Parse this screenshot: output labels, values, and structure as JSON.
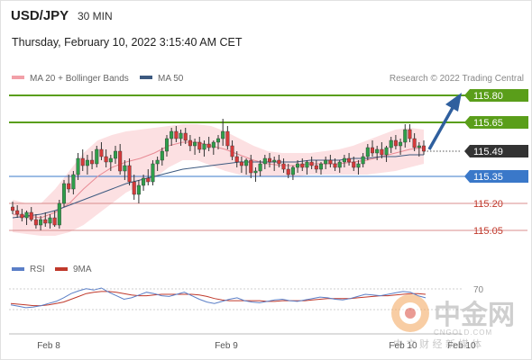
{
  "header": {
    "symbol": "USD/JPY",
    "timeframe": "30 MIN",
    "timestamp": "Thursday, February 10, 2022 3:15:40 AM CET"
  },
  "legend": {
    "items": [
      {
        "label": "MA 20 + Bollinger Bands",
        "color": "#f2a0a8"
      },
      {
        "label": "MA 50",
        "color": "#3d5a80"
      }
    ],
    "credit": "Research © 2022 Trading Central"
  },
  "chart_data": {
    "type": "candlestick",
    "title": "USD/JPY",
    "price_range": [
      115.0,
      115.85
    ],
    "levels": [
      {
        "value": 115.8,
        "label": "115.80",
        "role": "resistance",
        "line_color": "#5a9e1a",
        "label_bg": "#5a9e1a",
        "label_color": "#ffffff"
      },
      {
        "value": 115.65,
        "label": "115.65",
        "role": "resistance",
        "line_color": "#5a9e1a",
        "label_bg": "#5a9e1a",
        "label_color": "#ffffff"
      },
      {
        "value": 115.49,
        "label": "115.49",
        "role": "current",
        "line_color": "#333333",
        "label_bg": "#333333",
        "label_color": "#ffffff"
      },
      {
        "value": 115.35,
        "label": "115.35",
        "role": "pivot",
        "line_color": "#3a78c9",
        "label_bg": "#3a78c9",
        "label_color": "#ffffff"
      },
      {
        "value": 115.2,
        "label": "115.20",
        "role": "support",
        "line_color": "#d98c8c",
        "label_bg": "",
        "label_color": "#c0392b"
      },
      {
        "value": 115.05,
        "label": "115.05",
        "role": "support",
        "line_color": "#d98c8c",
        "label_bg": "",
        "label_color": "#c0392b"
      }
    ],
    "x_ticks": [
      "Feb 8",
      "Feb 9",
      "Feb 10",
      "Feb 10"
    ],
    "candles": [
      [
        115.18,
        115.21,
        115.14,
        115.16
      ],
      [
        115.16,
        115.19,
        115.12,
        115.14
      ],
      [
        115.14,
        115.17,
        115.1,
        115.12
      ],
      [
        115.12,
        115.16,
        115.08,
        115.15
      ],
      [
        115.15,
        115.18,
        115.1,
        115.11
      ],
      [
        115.11,
        115.14,
        115.06,
        115.08
      ],
      [
        115.08,
        115.13,
        115.05,
        115.11
      ],
      [
        115.11,
        115.15,
        115.07,
        115.09
      ],
      [
        115.09,
        115.14,
        115.06,
        115.12
      ],
      [
        115.12,
        115.16,
        115.07,
        115.08
      ],
      [
        115.08,
        115.22,
        115.06,
        115.2
      ],
      [
        115.2,
        115.33,
        115.18,
        115.31
      ],
      [
        115.31,
        115.36,
        115.26,
        115.28
      ],
      [
        115.28,
        115.38,
        115.25,
        115.36
      ],
      [
        115.36,
        115.48,
        115.33,
        115.45
      ],
      [
        115.45,
        115.5,
        115.38,
        115.41
      ],
      [
        115.41,
        115.47,
        115.36,
        115.44
      ],
      [
        115.44,
        115.49,
        115.39,
        115.42
      ],
      [
        115.42,
        115.52,
        115.4,
        115.5
      ],
      [
        115.5,
        115.54,
        115.44,
        115.46
      ],
      [
        115.46,
        115.5,
        115.4,
        115.43
      ],
      [
        115.43,
        115.47,
        115.38,
        115.45
      ],
      [
        115.45,
        115.52,
        115.42,
        115.49
      ],
      [
        115.49,
        115.53,
        115.36,
        115.38
      ],
      [
        115.38,
        115.44,
        115.33,
        115.41
      ],
      [
        115.41,
        115.45,
        115.3,
        115.32
      ],
      [
        115.32,
        115.36,
        115.22,
        115.25
      ],
      [
        115.25,
        115.33,
        115.2,
        115.3
      ],
      [
        115.3,
        115.36,
        115.27,
        115.34
      ],
      [
        115.34,
        115.39,
        115.3,
        115.32
      ],
      [
        115.32,
        115.44,
        115.3,
        115.42
      ],
      [
        115.42,
        115.46,
        115.38,
        115.44
      ],
      [
        115.44,
        115.51,
        115.41,
        115.49
      ],
      [
        115.49,
        115.58,
        115.46,
        115.56
      ],
      [
        115.56,
        115.62,
        115.52,
        115.6
      ],
      [
        115.6,
        115.63,
        115.54,
        115.56
      ],
      [
        115.56,
        115.61,
        115.52,
        115.59
      ],
      [
        115.59,
        115.62,
        115.53,
        115.55
      ],
      [
        115.55,
        115.58,
        115.49,
        115.52
      ],
      [
        115.52,
        115.56,
        115.47,
        115.54
      ],
      [
        115.54,
        115.57,
        115.48,
        115.5
      ],
      [
        115.5,
        115.55,
        115.46,
        115.53
      ],
      [
        115.53,
        115.57,
        115.49,
        115.51
      ],
      [
        115.51,
        115.55,
        115.47,
        115.54
      ],
      [
        115.54,
        115.58,
        115.5,
        115.56
      ],
      [
        115.56,
        115.67,
        115.52,
        115.6
      ],
      [
        115.6,
        115.63,
        115.5,
        115.52
      ],
      [
        115.52,
        115.55,
        115.44,
        115.46
      ],
      [
        115.46,
        115.49,
        115.4,
        115.43
      ],
      [
        115.43,
        115.46,
        115.37,
        115.41
      ],
      [
        115.41,
        115.45,
        115.36,
        115.44
      ],
      [
        115.44,
        115.47,
        115.34,
        115.37
      ],
      [
        115.37,
        115.4,
        115.32,
        115.38
      ],
      [
        115.38,
        115.44,
        115.35,
        115.42
      ],
      [
        115.42,
        115.47,
        115.39,
        115.45
      ],
      [
        115.45,
        115.48,
        115.4,
        115.43
      ],
      [
        115.43,
        115.46,
        115.38,
        115.44
      ],
      [
        115.44,
        115.47,
        115.4,
        115.42
      ],
      [
        115.42,
        115.45,
        115.37,
        115.39
      ],
      [
        115.39,
        115.42,
        115.34,
        115.36
      ],
      [
        115.36,
        115.41,
        115.33,
        115.4
      ],
      [
        115.4,
        115.44,
        115.37,
        115.42
      ],
      [
        115.42,
        115.45,
        115.38,
        115.4
      ],
      [
        115.4,
        115.44,
        115.36,
        115.43
      ],
      [
        115.43,
        115.46,
        115.39,
        115.41
      ],
      [
        115.41,
        115.44,
        115.37,
        115.39
      ],
      [
        115.39,
        115.43,
        115.36,
        115.42
      ],
      [
        115.42,
        115.46,
        115.39,
        115.44
      ],
      [
        115.44,
        115.47,
        115.4,
        115.42
      ],
      [
        115.42,
        115.45,
        115.38,
        115.4
      ],
      [
        115.4,
        115.44,
        115.37,
        115.43
      ],
      [
        115.43,
        115.47,
        115.4,
        115.45
      ],
      [
        115.45,
        115.48,
        115.41,
        115.43
      ],
      [
        115.43,
        115.46,
        115.38,
        115.4
      ],
      [
        115.4,
        115.44,
        115.36,
        115.42
      ],
      [
        115.42,
        115.48,
        115.4,
        115.46
      ],
      [
        115.46,
        115.53,
        115.44,
        115.51
      ],
      [
        115.51,
        115.55,
        115.46,
        115.48
      ],
      [
        115.48,
        115.52,
        115.44,
        115.5
      ],
      [
        115.5,
        115.54,
        115.45,
        115.47
      ],
      [
        115.47,
        115.52,
        115.43,
        115.51
      ],
      [
        115.51,
        115.57,
        115.48,
        115.55
      ],
      [
        115.55,
        115.58,
        115.5,
        115.52
      ],
      [
        115.52,
        115.56,
        115.47,
        115.54
      ],
      [
        115.54,
        115.64,
        115.51,
        115.61
      ],
      [
        115.61,
        115.64,
        115.54,
        115.56
      ],
      [
        115.56,
        115.59,
        115.49,
        115.51
      ],
      [
        115.51,
        115.54,
        115.46,
        115.52
      ],
      [
        115.52,
        115.55,
        115.47,
        115.49
      ]
    ],
    "ma50": [
      115.12,
      115.13,
      115.14,
      115.16,
      115.19,
      115.22,
      115.25,
      115.28,
      115.31,
      115.33,
      115.35,
      115.37,
      115.39,
      115.4,
      115.41,
      115.42,
      115.43,
      115.43,
      115.43,
      115.43,
      115.43,
      115.44,
      115.44,
      115.44,
      115.45,
      115.45,
      115.46,
      115.46,
      115.47,
      115.47
    ],
    "ma20": [
      115.14,
      115.13,
      115.12,
      115.15,
      115.2,
      115.28,
      115.35,
      115.4,
      115.43,
      115.45,
      115.48,
      115.52,
      115.54,
      115.54,
      115.52,
      115.5,
      115.47,
      115.44,
      115.42,
      115.41,
      115.41,
      115.42,
      115.42,
      115.42,
      115.43,
      115.44,
      115.46,
      115.48,
      115.5,
      115.51
    ],
    "bb_upper": [
      115.22,
      115.2,
      115.2,
      115.28,
      115.38,
      115.48,
      115.55,
      115.58,
      115.6,
      115.61,
      115.62,
      115.63,
      115.64,
      115.64,
      115.63,
      115.6,
      115.56,
      115.52,
      115.49,
      115.48,
      115.48,
      115.48,
      115.49,
      115.5,
      115.52,
      115.55,
      115.58,
      115.61,
      115.62,
      115.61
    ],
    "bb_lower": [
      115.04,
      115.03,
      115.02,
      115.02,
      115.04,
      115.08,
      115.14,
      115.2,
      115.26,
      115.3,
      115.34,
      115.4,
      115.44,
      115.44,
      115.41,
      115.38,
      115.36,
      115.35,
      115.35,
      115.35,
      115.35,
      115.36,
      115.36,
      115.36,
      115.36,
      115.36,
      115.37,
      115.38,
      115.4,
      115.42
    ],
    "rsi": {
      "legend": [
        {
          "label": "RSI",
          "color": "#5b7fc7"
        },
        {
          "label": "9MA",
          "color": "#c0392b"
        }
      ],
      "level_label": "70",
      "range": [
        20,
        80
      ],
      "rsi_values": [
        42,
        40,
        38,
        39,
        41,
        44,
        47,
        52,
        58,
        62,
        65,
        63,
        66,
        60,
        55,
        50,
        52,
        56,
        60,
        58,
        55,
        54,
        57,
        60,
        55,
        50,
        46,
        44,
        47,
        50,
        52,
        48,
        46,
        45,
        47,
        49,
        50,
        48,
        47,
        49,
        51,
        53,
        52,
        50,
        49,
        51,
        54,
        57,
        56,
        55,
        57,
        59,
        61,
        60,
        55,
        52
      ],
      "ma_values": [
        44,
        43,
        42,
        41,
        41,
        42,
        44,
        46,
        50,
        54,
        58,
        60,
        61,
        61,
        60,
        58,
        56,
        55,
        55,
        56,
        57,
        57,
        57,
        57,
        57,
        56,
        54,
        51,
        49,
        48,
        48,
        48,
        48,
        48,
        47,
        47,
        48,
        48,
        48,
        48,
        49,
        50,
        51,
        51,
        51,
        51,
        52,
        53,
        54,
        55,
        55,
        56,
        57,
        58,
        58,
        57
      ]
    }
  },
  "watermark": {
    "brand": "中金网",
    "domain": "CNGOLD.COM",
    "slogan": "中 文 财 经 新 媒 体"
  }
}
